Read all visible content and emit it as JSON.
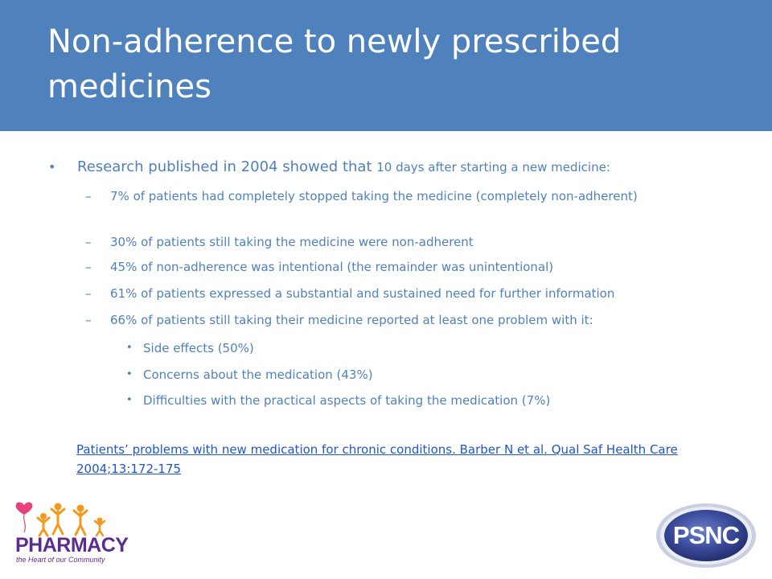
{
  "title": "Non-adherence to newly prescribed medicines",
  "intro": {
    "text_main": "Research published in 2004 showed that ",
    "text_small": "10 days after starting a new medicine:"
  },
  "sub_bullets": [
    "7% of patients had completely stopped taking the medicine (completely non-adherent)",
    "30% of patients still taking the medicine were non-adherent",
    "45% of non-adherence was intentional (the remainder was unintentional)",
    "61% of patients expressed a substantial and sustained need for further information",
    "66% of patients still taking their medicine reported at least one problem with it:"
  ],
  "problems": [
    "Side effects (50%)",
    "Concerns about the medication (43%)",
    "Difficulties with the practical aspects of taking the medication (7%)"
  ],
  "reference": "Patients’ problems with new medication for chronic conditions. Barber N et al. Qual Saf Health Care 2004;13:172-175",
  "logos": {
    "pharmacy_word": "PHARMACY",
    "pharmacy_tagline": "the Heart of our Community",
    "psnc": "PSNC"
  },
  "colors": {
    "title_band": "#4f81bd",
    "body_text": "#4f81bd",
    "link": "#1f56c8",
    "pharmacy_purple": "#5b2d91",
    "heart_pink": "#e8427c",
    "people_orange": "#f29a1f",
    "psnc_navy": "#3a4a9a"
  }
}
